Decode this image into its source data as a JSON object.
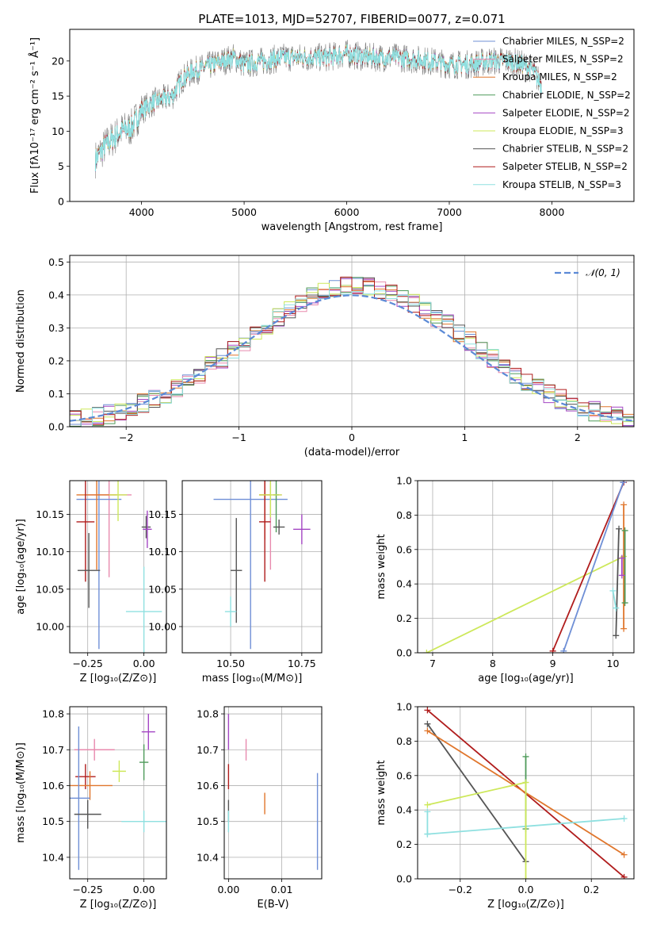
{
  "figure": {
    "title": "PLATE=1013, MJD=52707, FIBERID=0077, z=0.071"
  },
  "chart_data": [
    {
      "id": "spectrum",
      "type": "line",
      "xlabel": "wavelength [Angstrom, rest frame]",
      "ylabel": "Flux [fλ10⁻¹⁷ erg cm⁻² s⁻¹ Å⁻¹]",
      "xlim": [
        3300,
        8800
      ],
      "ylim": [
        0,
        24.5
      ],
      "xticks": [
        4000,
        5000,
        6000,
        7000,
        8000
      ],
      "yticks": [
        0,
        5,
        10,
        15,
        20
      ],
      "legend": "top-right",
      "series": [
        {
          "name": "Chabrier MILES, N_SSP=2",
          "color": "#6f8fd6"
        },
        {
          "name": "Salpeter MILES, N_SSP=2",
          "color": "#e88aae"
        },
        {
          "name": "Kroupa MILES, N_SSP=2",
          "color": "#e0762c"
        },
        {
          "name": "Chabrier ELODIE, N_SSP=2",
          "color": "#4f9a5a"
        },
        {
          "name": "Salpeter ELODIE, N_SSP=2",
          "color": "#a447c4"
        },
        {
          "name": "Kroupa ELODIE, N_SSP=3",
          "color": "#cde85a"
        },
        {
          "name": "Chabrier STELIB, N_SSP=2",
          "color": "#555555"
        },
        {
          "name": "Salpeter STELIB, N_SSP=2",
          "color": "#b01c1c"
        },
        {
          "name": "Kroupa STELIB, N_SSP=3",
          "color": "#8fe0e0"
        }
      ],
      "data_color": "#808080",
      "continuum": {
        "x": [
          3550,
          3650,
          3800,
          3900,
          4000,
          4100,
          4200,
          4300,
          4400,
          4500,
          4700,
          4900,
          5000,
          5200,
          5400,
          5600,
          5800,
          6000,
          6200,
          6500,
          6800,
          7000,
          7200,
          7400,
          7600,
          7800,
          7900
        ],
        "y": [
          6,
          8,
          10,
          10.5,
          13,
          14,
          14.5,
          15,
          17.5,
          18.5,
          19.5,
          20.5,
          19.5,
          20,
          20.5,
          20.5,
          20.5,
          21,
          20.5,
          20.5,
          20,
          19.5,
          19.5,
          20,
          20,
          19,
          16.5
        ]
      }
    },
    {
      "id": "residuals",
      "type": "step",
      "xlabel": "(data-model)/error",
      "ylabel": "Normed distribution",
      "xlim": [
        -2.5,
        2.5
      ],
      "ylim": [
        0,
        0.52
      ],
      "xticks": [
        -2,
        -1,
        0,
        1,
        2
      ],
      "yticks": [
        0.0,
        0.1,
        0.2,
        0.3,
        0.4,
        0.5
      ],
      "reference": {
        "name": "𝒩(0, 1)",
        "color": "#5b8ad6"
      },
      "legend": "top-right",
      "bin_width": 0.1
    },
    {
      "id": "age_vs_Z",
      "type": "errorbar",
      "xlabel": "Z [log₁₀(Z/Z⊙)]",
      "ylabel": "age  [log₁₀(age/yr)]",
      "xlim": [
        -0.33,
        0.1
      ],
      "ylim": [
        9.965,
        10.195
      ],
      "xticks": [
        -0.25,
        0.0
      ],
      "yticks": [
        10.0,
        10.05,
        10.1,
        10.15
      ],
      "points": [
        {
          "x": -0.155,
          "y": 10.176,
          "xerr": 0.1,
          "yerr": 0.11,
          "color": "#e88aae"
        },
        {
          "x": -0.2,
          "y": 10.17,
          "xerr": 0.1,
          "yerr": 0.2,
          "color": "#6f8fd6"
        },
        {
          "x": -0.21,
          "y": 10.176,
          "xerr": 0.09,
          "yerr": 0.1,
          "color": "#e0762c"
        },
        {
          "x": -0.115,
          "y": 10.176,
          "xerr": 0.04,
          "yerr": 0.035,
          "color": "#cde85a"
        },
        {
          "x": -0.26,
          "y": 10.14,
          "xerr": 0.04,
          "yerr": 0.08,
          "color": "#b01c1c"
        },
        {
          "x": -0.245,
          "y": 10.075,
          "xerr": 0.05,
          "yerr": 0.05,
          "color": "#555555"
        },
        {
          "x": 0.01,
          "y": 10.133,
          "xerr": 0.02,
          "yerr": 0.015,
          "color": "#555555"
        },
        {
          "x": 0.015,
          "y": 10.13,
          "xerr": 0.02,
          "yerr": 0.025,
          "color": "#a447c4"
        },
        {
          "x": 0.0,
          "y": 10.02,
          "xerr": 0.08,
          "yerr": 0.06,
          "color": "#8fe0e0"
        }
      ]
    },
    {
      "id": "age_vs_mass",
      "type": "errorbar",
      "xlabel": "mass [log₁₀(M/M⊙)]",
      "ylabel": "",
      "xlim": [
        10.33,
        10.82
      ],
      "ylim": [
        9.965,
        10.195
      ],
      "xticks": [
        10.5,
        10.75
      ],
      "yticks": [
        10.0,
        10.05,
        10.1,
        10.15
      ],
      "points": [
        {
          "x": 10.57,
          "y": 10.17,
          "xerr": 0.13,
          "yerr": 0.2,
          "color": "#6f8fd6"
        },
        {
          "x": 10.64,
          "y": 10.176,
          "xerr": 0.04,
          "yerr": 0.1,
          "color": "#e88aae"
        },
        {
          "x": 10.62,
          "y": 10.176,
          "xerr": 0.02,
          "yerr": 0.06,
          "color": "#e0762c"
        },
        {
          "x": 10.66,
          "y": 10.176,
          "xerr": 0.01,
          "yerr": 0.05,
          "color": "#4f9a5a"
        },
        {
          "x": 10.62,
          "y": 10.14,
          "xerr": 0.02,
          "yerr": 0.08,
          "color": "#b01c1c"
        },
        {
          "x": 10.52,
          "y": 10.075,
          "xerr": 0.02,
          "yerr": 0.07,
          "color": "#555555"
        },
        {
          "x": 10.5,
          "y": 10.02,
          "xerr": 0.02,
          "yerr": 0.02,
          "color": "#8fe0e0"
        },
        {
          "x": 10.67,
          "y": 10.133,
          "xerr": 0.02,
          "yerr": 0.01,
          "color": "#555555"
        },
        {
          "x": 10.64,
          "y": 10.176,
          "xerr": 0.04,
          "yerr": 0.03,
          "color": "#cde85a"
        },
        {
          "x": 10.75,
          "y": 10.13,
          "xerr": 0.03,
          "yerr": 0.02,
          "color": "#a447c4"
        }
      ]
    },
    {
      "id": "weight_vs_age",
      "type": "line",
      "xlabel": "age  [log₁₀(age/yr)]",
      "ylabel": "mass weight",
      "xlim": [
        6.75,
        10.35
      ],
      "ylim": [
        0,
        1.0
      ],
      "xticks": [
        7,
        8,
        9,
        10
      ],
      "yticks": [
        0.0,
        0.2,
        0.4,
        0.6,
        0.8,
        1.0
      ],
      "series": [
        {
          "color": "#cde85a",
          "x": [
            6.9,
            10.18
          ],
          "y": [
            0.0,
            0.56
          ]
        },
        {
          "color": "#b01c1c",
          "x": [
            9.0,
            10.18
          ],
          "y": [
            0.01,
            0.99
          ]
        },
        {
          "color": "#6f8fd6",
          "x": [
            9.18,
            10.17
          ],
          "y": [
            0.01,
            0.99
          ]
        },
        {
          "color": "#555555",
          "x": [
            10.05,
            10.1
          ],
          "y": [
            0.1,
            0.72
          ]
        },
        {
          "color": "#e0762c",
          "x": [
            10.18,
            10.18
          ],
          "y": [
            0.14,
            0.86
          ]
        },
        {
          "color": "#4f9a5a",
          "x": [
            10.2,
            10.2
          ],
          "y": [
            0.29,
            0.71
          ]
        },
        {
          "color": "#a447c4",
          "x": [
            10.15,
            10.15
          ],
          "y": [
            0.45,
            0.55
          ]
        },
        {
          "color": "#8fe0e0",
          "x": [
            10.0,
            10.05
          ],
          "y": [
            0.36,
            0.26
          ]
        }
      ]
    },
    {
      "id": "mass_vs_Z",
      "type": "errorbar",
      "xlabel": "Z [log₁₀(Z/Z⊙)]",
      "ylabel": "mass [log₁₀(M/M⊙)]",
      "xlim": [
        -0.33,
        0.1
      ],
      "ylim": [
        10.34,
        10.82
      ],
      "xticks": [
        -0.25,
        0.0
      ],
      "yticks": [
        10.4,
        10.5,
        10.6,
        10.7,
        10.8
      ],
      "points": [
        {
          "x": -0.22,
          "y": 10.7,
          "xerr": 0.09,
          "yerr": 0.03,
          "color": "#e88aae"
        },
        {
          "x": 0.02,
          "y": 10.75,
          "xerr": 0.03,
          "yerr": 0.05,
          "color": "#a447c4"
        },
        {
          "x": 0.0,
          "y": 10.665,
          "xerr": 0.02,
          "yerr": 0.05,
          "color": "#4f9a5a"
        },
        {
          "x": -0.26,
          "y": 10.625,
          "xerr": 0.045,
          "yerr": 0.035,
          "color": "#b01c1c"
        },
        {
          "x": -0.24,
          "y": 10.6,
          "xerr": 0.1,
          "yerr": 0.04,
          "color": "#e0762c"
        },
        {
          "x": -0.11,
          "y": 10.64,
          "xerr": 0.03,
          "yerr": 0.03,
          "color": "#cde85a"
        },
        {
          "x": -0.29,
          "y": 10.565,
          "xerr": 0.05,
          "yerr": 0.2,
          "color": "#6f8fd6"
        },
        {
          "x": -0.25,
          "y": 10.52,
          "xerr": 0.06,
          "yerr": 0.04,
          "color": "#555555"
        },
        {
          "x": 0.0,
          "y": 10.5,
          "xerr": 0.1,
          "yerr": 0.03,
          "color": "#8fe0e0"
        }
      ]
    },
    {
      "id": "mass_vs_ebv",
      "type": "errorbar",
      "xlabel": "E(B-V)",
      "ylabel": "",
      "xlim": [
        -0.0008,
        0.0175
      ],
      "ylim": [
        10.34,
        10.82
      ],
      "xticks": [
        0.0,
        0.01
      ],
      "yticks": [
        10.4,
        10.5,
        10.6,
        10.7,
        10.8
      ],
      "xticklabels": [
        "0.00",
        "0.01"
      ],
      "points": [
        {
          "x": 0.0,
          "y": 10.75,
          "xerr": 0,
          "yerr": 0.05,
          "color": "#a447c4"
        },
        {
          "x": 0.0,
          "y": 10.625,
          "xerr": 0,
          "yerr": 0.035,
          "color": "#b01c1c"
        },
        {
          "x": 0.0,
          "y": 10.53,
          "xerr": 0,
          "yerr": 0.03,
          "color": "#555555"
        },
        {
          "x": 0.0,
          "y": 10.5,
          "xerr": 0,
          "yerr": 0.03,
          "color": "#8fe0e0"
        },
        {
          "x": 0.0033,
          "y": 10.7,
          "xerr": 0,
          "yerr": 0.03,
          "color": "#e88aae"
        },
        {
          "x": 0.0068,
          "y": 10.55,
          "xerr": 0,
          "yerr": 0.03,
          "color": "#e0762c"
        },
        {
          "x": 0.0167,
          "y": 10.5,
          "xerr": 0,
          "yerr": 0.135,
          "color": "#6f8fd6"
        }
      ]
    },
    {
      "id": "weight_vs_Z",
      "type": "line",
      "xlabel": "Z [log₁₀(Z/Z⊙)]",
      "ylabel": "mass weight",
      "xlim": [
        -0.33,
        0.33
      ],
      "ylim": [
        0,
        1.0
      ],
      "xticks": [
        -0.2,
        0.0,
        0.2
      ],
      "yticks": [
        0.0,
        0.2,
        0.4,
        0.6,
        0.8,
        1.0
      ],
      "series": [
        {
          "color": "#b01c1c",
          "x": [
            -0.3,
            0.3
          ],
          "y": [
            0.98,
            0.01
          ]
        },
        {
          "color": "#555555",
          "x": [
            -0.3,
            0.0
          ],
          "y": [
            0.9,
            0.1
          ]
        },
        {
          "color": "#e0762c",
          "x": [
            -0.3,
            0.3
          ],
          "y": [
            0.86,
            0.14
          ]
        },
        {
          "color": "#cde85a",
          "x": [
            -0.3,
            0.0
          ],
          "y": [
            0.43,
            0.56
          ]
        },
        {
          "color": "#8fe0e0",
          "x": [
            -0.3,
            0.3
          ],
          "y": [
            0.26,
            0.35
          ]
        },
        {
          "color": "#8fe0e0",
          "x": [
            -0.3,
            -0.3
          ],
          "y": [
            0.39,
            0.26
          ]
        },
        {
          "color": "#4f9a5a",
          "x": [
            0.0,
            0.0
          ],
          "y": [
            0.71,
            0.29
          ]
        },
        {
          "color": "#cde85a",
          "x": [
            0.0,
            0.0
          ],
          "y": [
            0.56,
            0.0
          ]
        }
      ]
    }
  ]
}
